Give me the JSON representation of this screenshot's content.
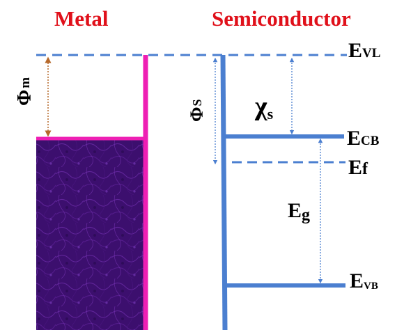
{
  "labels": {
    "metal": "Metal",
    "semiconductor": "Semiconductor",
    "phi_m_symbol": "Φ",
    "phi_m_sub": "m",
    "phi_s_symbol": "Φ",
    "phi_s_sub": "S",
    "chi_symbol": "χ",
    "chi_sub": "s",
    "evl_main": "E",
    "evl_sub": "VL",
    "ecb_main": "E",
    "ecb_sub": "CB",
    "ef_main": "E",
    "ef_sub": "f",
    "eg_main": "E",
    "eg_sub": "g",
    "evb_main": "E",
    "evb_sub": "VB"
  },
  "colors": {
    "title_red": "#e0101a",
    "band_blue": "#4b7fd0",
    "metal_magenta": "#ee1fb4",
    "metal_fill": "#3c0f6e",
    "phi_m_arrow": "#b6682a",
    "text_black": "#000000"
  }
}
